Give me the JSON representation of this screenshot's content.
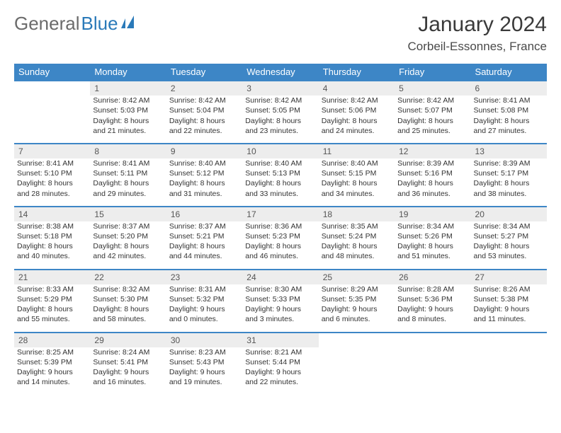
{
  "logo": {
    "part1": "General",
    "part2": "Blue"
  },
  "title": "January 2024",
  "location": "Corbeil-Essonnes, France",
  "colors": {
    "header_bg": "#3d86c6",
    "header_text": "#ffffff",
    "daynum_bg": "#ededed",
    "border": "#3d86c6",
    "text": "#333333",
    "logo_gray": "#6b6b6b",
    "logo_blue": "#2a7ab9"
  },
  "typography": {
    "title_fontsize": 30,
    "location_fontsize": 17,
    "cell_fontsize": 10.5,
    "header_fontsize": 13,
    "logo_fontsize": 26
  },
  "weekdays": [
    "Sunday",
    "Monday",
    "Tuesday",
    "Wednesday",
    "Thursday",
    "Friday",
    "Saturday"
  ],
  "weeks": [
    [
      null,
      {
        "num": "1",
        "sunrise": "Sunrise: 8:42 AM",
        "sunset": "Sunset: 5:03 PM",
        "day1": "Daylight: 8 hours",
        "day2": "and 21 minutes."
      },
      {
        "num": "2",
        "sunrise": "Sunrise: 8:42 AM",
        "sunset": "Sunset: 5:04 PM",
        "day1": "Daylight: 8 hours",
        "day2": "and 22 minutes."
      },
      {
        "num": "3",
        "sunrise": "Sunrise: 8:42 AM",
        "sunset": "Sunset: 5:05 PM",
        "day1": "Daylight: 8 hours",
        "day2": "and 23 minutes."
      },
      {
        "num": "4",
        "sunrise": "Sunrise: 8:42 AM",
        "sunset": "Sunset: 5:06 PM",
        "day1": "Daylight: 8 hours",
        "day2": "and 24 minutes."
      },
      {
        "num": "5",
        "sunrise": "Sunrise: 8:42 AM",
        "sunset": "Sunset: 5:07 PM",
        "day1": "Daylight: 8 hours",
        "day2": "and 25 minutes."
      },
      {
        "num": "6",
        "sunrise": "Sunrise: 8:41 AM",
        "sunset": "Sunset: 5:08 PM",
        "day1": "Daylight: 8 hours",
        "day2": "and 27 minutes."
      }
    ],
    [
      {
        "num": "7",
        "sunrise": "Sunrise: 8:41 AM",
        "sunset": "Sunset: 5:10 PM",
        "day1": "Daylight: 8 hours",
        "day2": "and 28 minutes."
      },
      {
        "num": "8",
        "sunrise": "Sunrise: 8:41 AM",
        "sunset": "Sunset: 5:11 PM",
        "day1": "Daylight: 8 hours",
        "day2": "and 29 minutes."
      },
      {
        "num": "9",
        "sunrise": "Sunrise: 8:40 AM",
        "sunset": "Sunset: 5:12 PM",
        "day1": "Daylight: 8 hours",
        "day2": "and 31 minutes."
      },
      {
        "num": "10",
        "sunrise": "Sunrise: 8:40 AM",
        "sunset": "Sunset: 5:13 PM",
        "day1": "Daylight: 8 hours",
        "day2": "and 33 minutes."
      },
      {
        "num": "11",
        "sunrise": "Sunrise: 8:40 AM",
        "sunset": "Sunset: 5:15 PM",
        "day1": "Daylight: 8 hours",
        "day2": "and 34 minutes."
      },
      {
        "num": "12",
        "sunrise": "Sunrise: 8:39 AM",
        "sunset": "Sunset: 5:16 PM",
        "day1": "Daylight: 8 hours",
        "day2": "and 36 minutes."
      },
      {
        "num": "13",
        "sunrise": "Sunrise: 8:39 AM",
        "sunset": "Sunset: 5:17 PM",
        "day1": "Daylight: 8 hours",
        "day2": "and 38 minutes."
      }
    ],
    [
      {
        "num": "14",
        "sunrise": "Sunrise: 8:38 AM",
        "sunset": "Sunset: 5:18 PM",
        "day1": "Daylight: 8 hours",
        "day2": "and 40 minutes."
      },
      {
        "num": "15",
        "sunrise": "Sunrise: 8:37 AM",
        "sunset": "Sunset: 5:20 PM",
        "day1": "Daylight: 8 hours",
        "day2": "and 42 minutes."
      },
      {
        "num": "16",
        "sunrise": "Sunrise: 8:37 AM",
        "sunset": "Sunset: 5:21 PM",
        "day1": "Daylight: 8 hours",
        "day2": "and 44 minutes."
      },
      {
        "num": "17",
        "sunrise": "Sunrise: 8:36 AM",
        "sunset": "Sunset: 5:23 PM",
        "day1": "Daylight: 8 hours",
        "day2": "and 46 minutes."
      },
      {
        "num": "18",
        "sunrise": "Sunrise: 8:35 AM",
        "sunset": "Sunset: 5:24 PM",
        "day1": "Daylight: 8 hours",
        "day2": "and 48 minutes."
      },
      {
        "num": "19",
        "sunrise": "Sunrise: 8:34 AM",
        "sunset": "Sunset: 5:26 PM",
        "day1": "Daylight: 8 hours",
        "day2": "and 51 minutes."
      },
      {
        "num": "20",
        "sunrise": "Sunrise: 8:34 AM",
        "sunset": "Sunset: 5:27 PM",
        "day1": "Daylight: 8 hours",
        "day2": "and 53 minutes."
      }
    ],
    [
      {
        "num": "21",
        "sunrise": "Sunrise: 8:33 AM",
        "sunset": "Sunset: 5:29 PM",
        "day1": "Daylight: 8 hours",
        "day2": "and 55 minutes."
      },
      {
        "num": "22",
        "sunrise": "Sunrise: 8:32 AM",
        "sunset": "Sunset: 5:30 PM",
        "day1": "Daylight: 8 hours",
        "day2": "and 58 minutes."
      },
      {
        "num": "23",
        "sunrise": "Sunrise: 8:31 AM",
        "sunset": "Sunset: 5:32 PM",
        "day1": "Daylight: 9 hours",
        "day2": "and 0 minutes."
      },
      {
        "num": "24",
        "sunrise": "Sunrise: 8:30 AM",
        "sunset": "Sunset: 5:33 PM",
        "day1": "Daylight: 9 hours",
        "day2": "and 3 minutes."
      },
      {
        "num": "25",
        "sunrise": "Sunrise: 8:29 AM",
        "sunset": "Sunset: 5:35 PM",
        "day1": "Daylight: 9 hours",
        "day2": "and 6 minutes."
      },
      {
        "num": "26",
        "sunrise": "Sunrise: 8:28 AM",
        "sunset": "Sunset: 5:36 PM",
        "day1": "Daylight: 9 hours",
        "day2": "and 8 minutes."
      },
      {
        "num": "27",
        "sunrise": "Sunrise: 8:26 AM",
        "sunset": "Sunset: 5:38 PM",
        "day1": "Daylight: 9 hours",
        "day2": "and 11 minutes."
      }
    ],
    [
      {
        "num": "28",
        "sunrise": "Sunrise: 8:25 AM",
        "sunset": "Sunset: 5:39 PM",
        "day1": "Daylight: 9 hours",
        "day2": "and 14 minutes."
      },
      {
        "num": "29",
        "sunrise": "Sunrise: 8:24 AM",
        "sunset": "Sunset: 5:41 PM",
        "day1": "Daylight: 9 hours",
        "day2": "and 16 minutes."
      },
      {
        "num": "30",
        "sunrise": "Sunrise: 8:23 AM",
        "sunset": "Sunset: 5:43 PM",
        "day1": "Daylight: 9 hours",
        "day2": "and 19 minutes."
      },
      {
        "num": "31",
        "sunrise": "Sunrise: 8:21 AM",
        "sunset": "Sunset: 5:44 PM",
        "day1": "Daylight: 9 hours",
        "day2": "and 22 minutes."
      },
      null,
      null,
      null
    ]
  ]
}
